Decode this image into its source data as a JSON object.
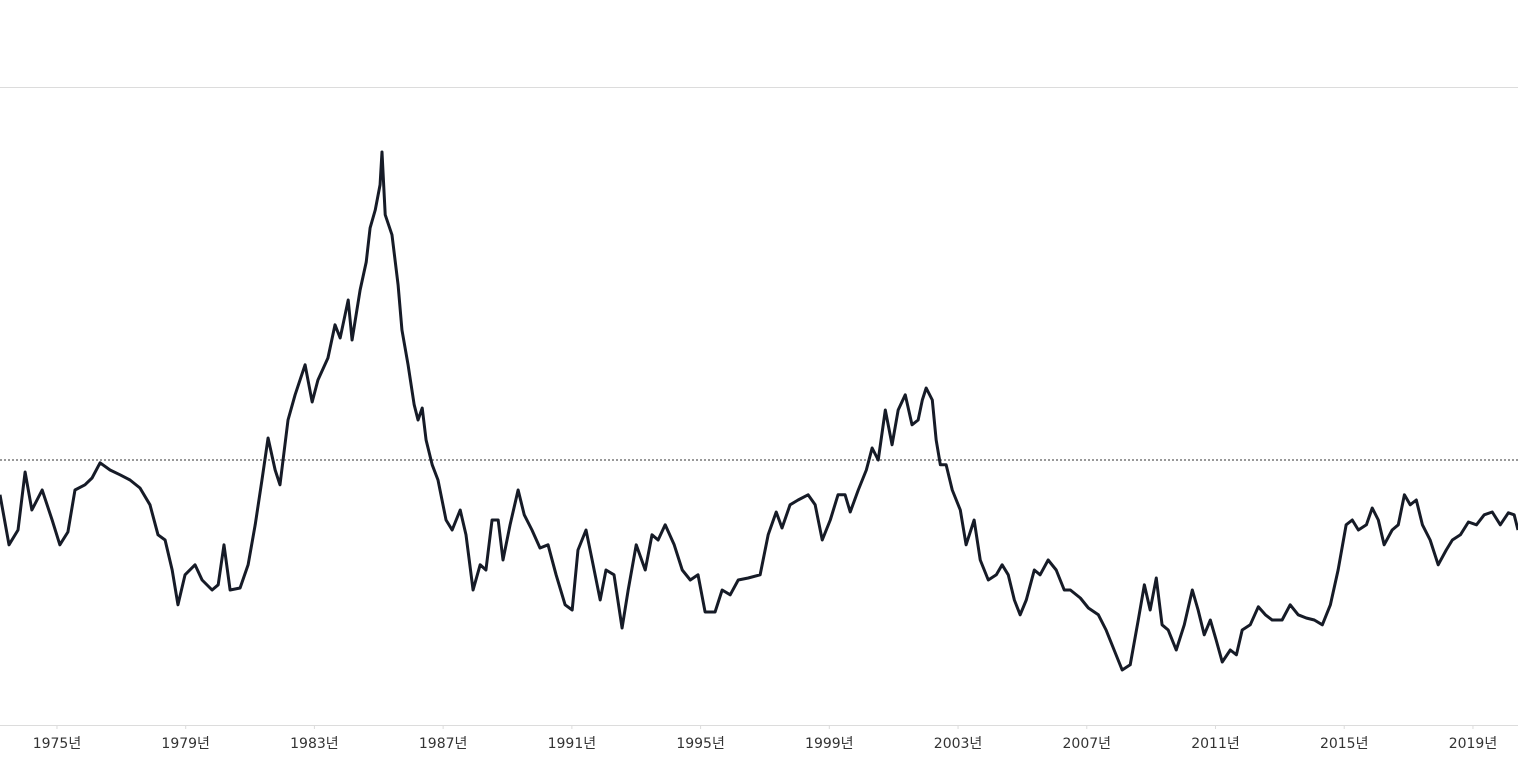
{
  "chart_data": {
    "type": "line",
    "xlim": [
      1973.23,
      2020.4
    ],
    "ylim": [
      33.75,
      193
    ],
    "xticks": [
      {
        "value": 1975,
        "label": "1975년"
      },
      {
        "value": 1979,
        "label": "1979년"
      },
      {
        "value": 1983,
        "label": "1983년"
      },
      {
        "value": 1987,
        "label": "1987년"
      },
      {
        "value": 1991,
        "label": "1991년"
      },
      {
        "value": 1995,
        "label": "1995년"
      },
      {
        "value": 1999,
        "label": "1999년"
      },
      {
        "value": 2003,
        "label": "2003년"
      },
      {
        "value": 2007,
        "label": "2007년"
      },
      {
        "value": 2011,
        "label": "2011년"
      },
      {
        "value": 2015,
        "label": "2015년"
      },
      {
        "value": 2019,
        "label": "2019년"
      }
    ],
    "reference_line": 100,
    "series": [
      {
        "color": "#161b27",
        "x": [
          1973.23,
          1973.51,
          1973.79,
          1974.01,
          1974.22,
          1974.54,
          1974.85,
          1975.09,
          1975.34,
          1975.56,
          1975.87,
          1976.09,
          1976.34,
          1976.65,
          1976.96,
          1977.27,
          1977.58,
          1977.89,
          1978.14,
          1978.36,
          1978.58,
          1978.76,
          1978.98,
          1979.29,
          1979.51,
          1979.82,
          1980.01,
          1980.19,
          1980.38,
          1980.69,
          1980.94,
          1981.16,
          1981.37,
          1981.56,
          1981.78,
          1981.93,
          1982.18,
          1982.4,
          1982.71,
          1982.93,
          1983.11,
          1983.42,
          1983.64,
          1983.8,
          1984.05,
          1984.17,
          1984.42,
          1984.61,
          1984.73,
          1984.89,
          1985.04,
          1985.1,
          1985.2,
          1985.41,
          1985.6,
          1985.72,
          1985.91,
          1986.1,
          1986.22,
          1986.35,
          1986.47,
          1986.66,
          1986.84,
          1987.09,
          1987.28,
          1987.53,
          1987.71,
          1987.93,
          1988.15,
          1988.33,
          1988.52,
          1988.71,
          1988.86,
          1989.08,
          1989.33,
          1989.52,
          1989.76,
          1990.01,
          1990.26,
          1990.51,
          1990.79,
          1991.01,
          1991.19,
          1991.44,
          1991.63,
          1991.88,
          1992.06,
          1992.31,
          1992.56,
          1992.75,
          1993.0,
          1993.28,
          1993.49,
          1993.68,
          1993.9,
          1994.18,
          1994.43,
          1994.68,
          1994.92,
          1995.14,
          1995.45,
          1995.67,
          1995.92,
          1996.17,
          1996.48,
          1996.85,
          1997.1,
          1997.35,
          1997.53,
          1997.78,
          1998.03,
          1998.34,
          1998.56,
          1998.78,
          1999.03,
          1999.27,
          1999.49,
          1999.65,
          1999.9,
          2000.15,
          2000.33,
          2000.52,
          2000.74,
          2000.95,
          2001.14,
          2001.36,
          2001.57,
          2001.76,
          2001.89,
          2002.01,
          2002.2,
          2002.32,
          2002.45,
          2002.63,
          2002.82,
          2003.07,
          2003.25,
          2003.5,
          2003.69,
          2003.94,
          2004.19,
          2004.37,
          2004.56,
          2004.75,
          2004.93,
          2005.12,
          2005.37,
          2005.55,
          2005.8,
          2006.05,
          2006.3,
          2006.49,
          2006.8,
          2007.05,
          2007.36,
          2007.6,
          2007.85,
          2008.1,
          2008.35,
          2008.6,
          2008.79,
          2008.97,
          2009.16,
          2009.34,
          2009.53,
          2009.78,
          2010.03,
          2010.28,
          2010.46,
          2010.65,
          2010.84,
          2011.02,
          2011.21,
          2011.46,
          2011.65,
          2011.83,
          2012.08,
          2012.33,
          2012.55,
          2012.76,
          2013.07,
          2013.32,
          2013.57,
          2013.82,
          2014.07,
          2014.32,
          2014.57,
          2014.81,
          2015.06,
          2015.25,
          2015.44,
          2015.69,
          2015.87,
          2016.06,
          2016.24,
          2016.49,
          2016.68,
          2016.87,
          2017.05,
          2017.24,
          2017.43,
          2017.67,
          2017.92,
          2018.17,
          2018.36,
          2018.61,
          2018.86,
          2019.11,
          2019.35,
          2019.6,
          2019.85,
          2020.1,
          2020.28,
          2020.4
        ],
        "values": [
          91.3,
          78.8,
          82.5,
          97,
          87.5,
          92.5,
          85,
          78.8,
          82,
          92.5,
          93.8,
          95.5,
          99.3,
          97.5,
          96.3,
          95,
          93,
          88.8,
          81.3,
          80,
          72.5,
          63.8,
          71.3,
          73.8,
          70,
          67.5,
          68.8,
          78.8,
          67.5,
          68,
          73.8,
          83.8,
          95,
          105.5,
          97.5,
          93.8,
          110,
          116.3,
          123.8,
          114.5,
          120,
          125.5,
          133.8,
          130.5,
          140,
          130,
          142.5,
          149.5,
          158,
          162.5,
          168.8,
          177,
          161.3,
          156.3,
          143.8,
          132.5,
          123.8,
          113.8,
          110,
          113,
          105,
          98.8,
          95,
          85,
          82.5,
          87.5,
          81.3,
          67.5,
          73.8,
          72.5,
          85,
          85,
          75,
          83.8,
          92.5,
          86.3,
          82.5,
          78,
          78.8,
          71.3,
          63.8,
          62.5,
          77.5,
          82.5,
          75,
          65,
          72.5,
          71.3,
          58,
          67.5,
          78.8,
          72.5,
          81.3,
          80,
          83.8,
          78.8,
          72.5,
          70,
          71.3,
          62,
          62,
          67.5,
          66.3,
          70,
          70.5,
          71.3,
          81.3,
          87,
          83,
          88.8,
          90,
          91.3,
          88.8,
          80,
          85,
          91.3,
          91.3,
          87,
          92.5,
          97.5,
          103,
          100,
          112.5,
          103.8,
          112.5,
          116.3,
          108.8,
          110,
          115,
          118,
          115,
          105,
          98.8,
          98.8,
          92.5,
          87.5,
          78.8,
          85,
          75,
          70,
          71.3,
          73.8,
          71.3,
          65,
          61.3,
          65,
          72.5,
          71.3,
          75,
          72.5,
          67.5,
          67.5,
          65.5,
          63,
          61.3,
          57.5,
          52.5,
          47.5,
          48.8,
          60,
          68.8,
          62.5,
          70.5,
          58.8,
          57.5,
          52.5,
          58.8,
          67.5,
          62.5,
          56.3,
          60,
          55,
          49.5,
          52.5,
          51.3,
          57.5,
          58.8,
          63.3,
          61.3,
          60,
          60,
          63.8,
          61.3,
          60.5,
          60,
          58.8,
          63.8,
          72.5,
          83.8,
          85,
          82.5,
          83.8,
          88,
          85,
          78.8,
          82.5,
          83.8,
          91.3,
          88.8,
          90,
          83.8,
          80,
          73.8,
          77.5,
          80,
          81.3,
          84.5,
          83.8,
          86.3,
          87,
          83.8,
          86.8,
          86.3,
          82.5
        ]
      }
    ]
  }
}
